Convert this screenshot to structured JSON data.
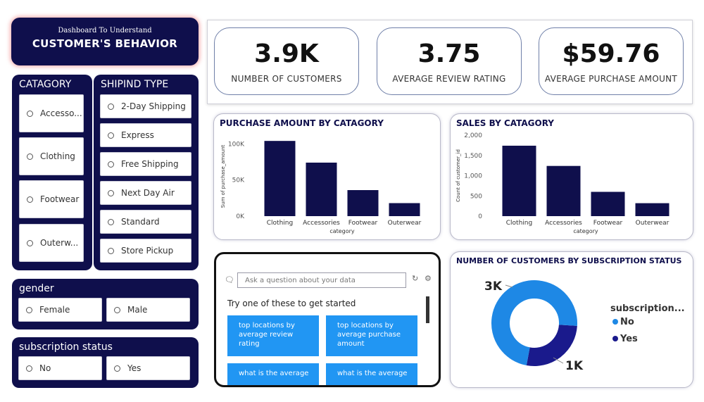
{
  "title": {
    "subtitle": "Dashboard To Understand",
    "main": "CUSTOMER'S BEHAVIOR"
  },
  "slicers": {
    "category": {
      "header": "CATAGORY",
      "options": [
        "Accesso...",
        "Clothing",
        "Footwear",
        "Outerw..."
      ]
    },
    "shipping": {
      "header": "SHIPIND TYPE",
      "options": [
        "2-Day Shipping",
        "Express",
        "Free Shipping",
        "Next Day Air",
        "Standard",
        "Store Pickup"
      ]
    },
    "gender": {
      "header": "gender",
      "options": [
        "Female",
        "Male"
      ]
    },
    "subscription": {
      "header": "subscription status",
      "options": [
        "No",
        "Yes"
      ]
    }
  },
  "kpis": [
    {
      "value": "3.9K",
      "label": "NUMBER OF CUSTOMERS"
    },
    {
      "value": "3.75",
      "label": "AVERAGE REVIEW RATING"
    },
    {
      "value": "$59.76",
      "label": "AVERAGE PURCHASE AMOUNT"
    }
  ],
  "colors": {
    "navy": "#0f0f4c",
    "accent": "#2196f3",
    "donut_no": "#1e88e5",
    "donut_yes": "#1a1a8c"
  },
  "chart_data": [
    {
      "type": "bar",
      "title": "PURCHASE AMOUNT BY CATAGORY",
      "categories": [
        "Clothing",
        "Accessories",
        "Footwear",
        "Outerwear"
      ],
      "values": [
        104000,
        74000,
        36000,
        18000
      ],
      "xlabel": "category",
      "ylabel": "Sum of purchase_amount",
      "ylim": [
        0,
        110000
      ],
      "ticks": [
        {
          "v": 0,
          "label": "0K"
        },
        {
          "v": 50000,
          "label": "50K"
        },
        {
          "v": 100000,
          "label": "100K"
        }
      ]
    },
    {
      "type": "bar",
      "title": "SALES BY CATAGORY",
      "categories": [
        "Clothing",
        "Accessories",
        "Footwear",
        "Outerwear"
      ],
      "values": [
        1740,
        1240,
        600,
        320
      ],
      "xlabel": "category",
      "ylabel": "Count of customer_id",
      "ylim": [
        0,
        2000
      ],
      "ticks": [
        {
          "v": 0,
          "label": "0"
        },
        {
          "v": 500,
          "label": "500"
        },
        {
          "v": 1000,
          "label": "1,000"
        },
        {
          "v": 1500,
          "label": "1,500"
        },
        {
          "v": 2000,
          "label": "2,000"
        }
      ]
    },
    {
      "type": "pie",
      "title": "NUMBER OF CUSTOMERS BY SUBSCRIPTION STATUS",
      "legend_title": "subscription...",
      "categories": [
        "No",
        "Yes"
      ],
      "values": [
        2850,
        1050
      ],
      "data_labels": [
        "3K",
        "1K"
      ]
    }
  ],
  "qa": {
    "placeholder": "Ask a question about your data",
    "prompt": "Try one of these to get started",
    "suggestions": [
      "top locations by average review rating",
      "top locations by average purchase amount",
      "what is the average",
      "what is the average"
    ]
  }
}
